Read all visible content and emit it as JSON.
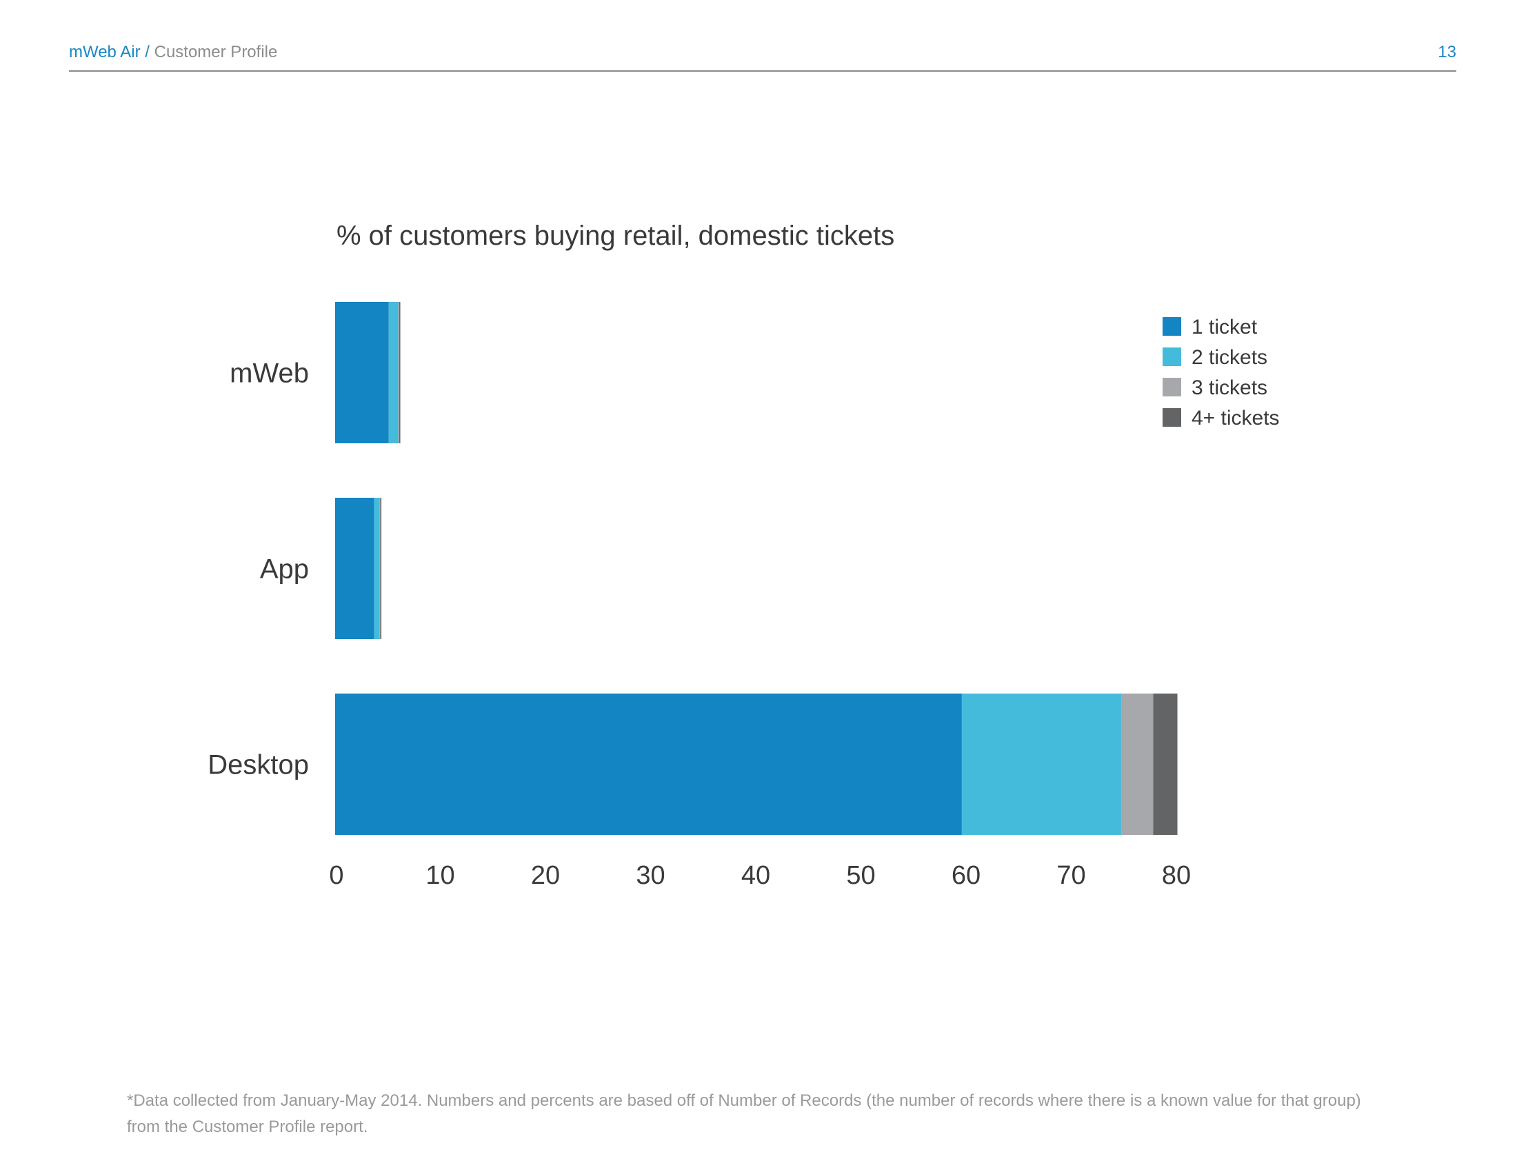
{
  "header": {
    "brand": "mWeb Air",
    "separator": " / ",
    "section": "Customer Profile",
    "page_number": "13"
  },
  "chart_data": {
    "type": "bar",
    "orientation": "horizontal",
    "stacked": true,
    "title": "% of customers buying retail, domestic tickets",
    "categories": [
      "mWeb",
      "App",
      "Desktop"
    ],
    "series": [
      {
        "name": "1 ticket",
        "color": "#1485c3",
        "values": [
          5.1,
          3.7,
          59.6
        ]
      },
      {
        "name": "2 tickets",
        "color": "#45bbdc",
        "values": [
          0.9,
          0.5,
          15.2
        ]
      },
      {
        "name": "3 tickets",
        "color": "#a6a8ab",
        "values": [
          0.1,
          0.1,
          3.0
        ]
      },
      {
        "name": "4+ tickets",
        "color": "#636466",
        "values": [
          0.1,
          0.1,
          2.3
        ]
      }
    ],
    "xlim": [
      0,
      80
    ],
    "x_ticks": [
      "0",
      "10",
      "20",
      "30",
      "40",
      "50",
      "60",
      "70",
      "80"
    ],
    "grid": false,
    "legend_position": "top-right"
  },
  "footnote": {
    "line1": "*Data collected from January-May 2014. Numbers and percents are based off of Number of Records (the number of records where there is a known value for that group)",
    "line2": "from the Customer Profile report."
  }
}
